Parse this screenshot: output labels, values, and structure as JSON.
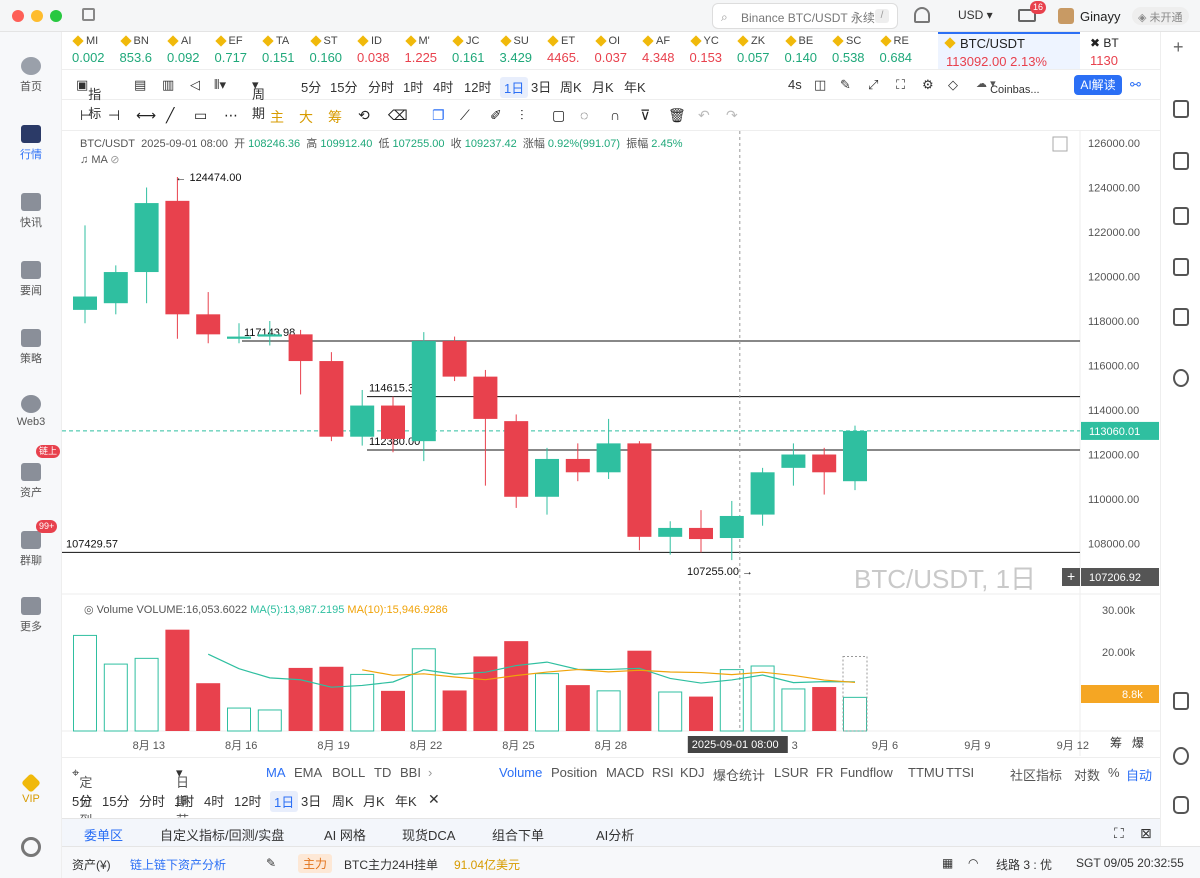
{
  "titlebar": {
    "search_placeholder": "Binance BTC/USDT 永续",
    "search_kbd": "/",
    "currency": "USD",
    "mail_badge": "16",
    "username": "Ginayy",
    "status_label": "未开通"
  },
  "sidebar": {
    "items": [
      {
        "label": "首页"
      },
      {
        "label": "行情"
      },
      {
        "label": "快讯"
      },
      {
        "label": "要闻"
      },
      {
        "label": "策略"
      },
      {
        "label": "Web3"
      },
      {
        "label": "资产"
      },
      {
        "label": "群聊"
      },
      {
        "label": "更多"
      },
      {
        "label": "VIP"
      }
    ],
    "asset_badge": "链上",
    "chat_badge": "99+"
  },
  "ticker": [
    {
      "name": "MI",
      "value": "0.002",
      "dir": "up"
    },
    {
      "name": "BN",
      "value": "853.6",
      "dir": "up"
    },
    {
      "name": "AI",
      "value": "0.092",
      "dir": "up"
    },
    {
      "name": "EF",
      "value": "0.717",
      "dir": "up"
    },
    {
      "name": "TA",
      "value": "0.151",
      "dir": "up"
    },
    {
      "name": "ST",
      "value": "0.160",
      "dir": "up"
    },
    {
      "name": "ID",
      "value": "0.038",
      "dir": "dn"
    },
    {
      "name": "M'",
      "value": "1.225",
      "dir": "dn"
    },
    {
      "name": "JC",
      "value": "0.161",
      "dir": "up"
    },
    {
      "name": "SU",
      "value": "3.429",
      "dir": "up"
    },
    {
      "name": "ET",
      "value": "4465.",
      "dir": "dn"
    },
    {
      "name": "OI",
      "value": "0.037",
      "dir": "dn"
    },
    {
      "name": "AF",
      "value": "4.348",
      "dir": "dn"
    },
    {
      "name": "YC",
      "value": "0.153",
      "dir": "dn"
    },
    {
      "name": "ZK",
      "value": "0.057",
      "dir": "up"
    },
    {
      "name": "BE",
      "value": "0.140",
      "dir": "up"
    },
    {
      "name": "SC",
      "value": "0.538",
      "dir": "up"
    },
    {
      "name": "RE",
      "value": "0.684",
      "dir": "up"
    }
  ],
  "active_ticker": {
    "name": "BTC/USDT",
    "price": "113092.00",
    "change": "2.13%"
  },
  "next_ticker": {
    "name": "BT",
    "price": "1130"
  },
  "toolbar": {
    "indicators": "指标",
    "period": "周期",
    "periods": [
      "5分",
      "15分",
      "分时",
      "1时",
      "4时",
      "12时",
      "1日",
      "3日",
      "周K",
      "月K",
      "年K"
    ],
    "active_period": "1日",
    "interval": "4s",
    "source": "Coinbas...",
    "ai_button": "AI解读"
  },
  "drawtools": {
    "main": "主",
    "big": "大",
    "chips": "筹"
  },
  "chart_info": {
    "symbol": "BTC/USDT",
    "date": "2025-09-01 08:00",
    "open_label": "开",
    "open": "108246.36",
    "high_label": "高",
    "high": "109912.40",
    "low_label": "低",
    "low": "107255.00",
    "close_label": "收",
    "close": "109237.42",
    "chg_label": "涨幅",
    "chg": "0.92%(991.07)",
    "amp_label": "振幅",
    "amp": "2.45%",
    "ma_label": "MA"
  },
  "watermark": "BTC/USDT, 1日",
  "volume_info": {
    "label": "Volume",
    "volume": "VOLUME:16,053.6022",
    "ma5": "MA(5):13,987.2195",
    "ma10": "MA(10):15,946.9286"
  },
  "chart_data": {
    "type": "candlestick",
    "ylim": [
      106000,
      127000
    ],
    "y_ticks": [
      "126000.00",
      "124000.00",
      "122000.00",
      "120000.00",
      "118000.00",
      "116000.00",
      "114000.00",
      "112000.00",
      "110000.00",
      "108000.00"
    ],
    "volume_ticks": [
      "30.00k",
      "20.00k"
    ],
    "volume_current_label": "8.8k",
    "x_ticks": [
      "8月 13",
      "8月 16",
      "8月 19",
      "8月 22",
      "8月 25",
      "8月 28",
      "9月 3",
      "9月 6",
      "9月 9",
      "9月 12"
    ],
    "crosshair_date": "2025-09-01 08:00",
    "candles": [
      {
        "o": 118500,
        "h": 122300,
        "l": 117900,
        "c": 119100,
        "v": 25000
      },
      {
        "o": 118800,
        "h": 120500,
        "l": 118300,
        "c": 120200,
        "v": 17500
      },
      {
        "o": 120200,
        "h": 124000,
        "l": 118800,
        "c": 123300,
        "v": 19000
      },
      {
        "o": 123400,
        "h": 124474,
        "l": 117200,
        "c": 118300,
        "v": 26500
      },
      {
        "o": 118300,
        "h": 119300,
        "l": 117000,
        "c": 117400,
        "v": 12500
      },
      {
        "o": 117200,
        "h": 117900,
        "l": 117000,
        "c": 117300,
        "v": 6000
      },
      {
        "o": 117300,
        "h": 118000,
        "l": 116900,
        "c": 117400,
        "v": 5500
      },
      {
        "o": 117400,
        "h": 117600,
        "l": 114700,
        "c": 116200,
        "v": 16500
      },
      {
        "o": 116200,
        "h": 116600,
        "l": 112600,
        "c": 112800,
        "v": 16800
      },
      {
        "o": 112800,
        "h": 114900,
        "l": 112400,
        "c": 114200,
        "v": 14800
      },
      {
        "o": 114200,
        "h": 114600,
        "l": 112100,
        "c": 112700,
        "v": 10500
      },
      {
        "o": 112600,
        "h": 117500,
        "l": 111700,
        "c": 117100,
        "v": 21500
      },
      {
        "o": 117100,
        "h": 117300,
        "l": 115300,
        "c": 115500,
        "v": 10600
      },
      {
        "o": 115500,
        "h": 115800,
        "l": 110600,
        "c": 113600,
        "v": 19500
      },
      {
        "o": 113500,
        "h": 113800,
        "l": 109600,
        "c": 110100,
        "v": 23500
      },
      {
        "o": 110100,
        "h": 112300,
        "l": 109300,
        "c": 111800,
        "v": 15000
      },
      {
        "o": 111800,
        "h": 112500,
        "l": 110800,
        "c": 111200,
        "v": 12000
      },
      {
        "o": 111200,
        "h": 113600,
        "l": 110900,
        "c": 112500,
        "v": 10500
      },
      {
        "o": 112500,
        "h": 112600,
        "l": 107700,
        "c": 108300,
        "v": 21000
      },
      {
        "o": 108300,
        "h": 109000,
        "l": 107500,
        "c": 108700,
        "v": 10200
      },
      {
        "o": 108700,
        "h": 109500,
        "l": 107600,
        "c": 108200,
        "v": 9000
      },
      {
        "o": 108246.36,
        "h": 109912.4,
        "l": 107255,
        "c": 109237.42,
        "v": 16053.6
      },
      {
        "o": 109300,
        "h": 111400,
        "l": 108800,
        "c": 111200,
        "v": 17000
      },
      {
        "o": 111400,
        "h": 112500,
        "l": 110600,
        "c": 112000,
        "v": 11000
      },
      {
        "o": 112000,
        "h": 112300,
        "l": 110200,
        "c": 111200,
        "v": 11500
      },
      {
        "o": 110800,
        "h": 113300,
        "l": 110400,
        "c": 113060,
        "v": 8800
      }
    ],
    "levels": [
      {
        "label": "117143.98",
        "price": 117100
      },
      {
        "label": "114615.38",
        "price": 114600
      },
      {
        "label": "112380.00",
        "price": 112200
      },
      {
        "label": "107429.57",
        "price": 107600
      }
    ],
    "high_label": "← 124474.00",
    "low_label": "107255.00 →",
    "price_tag": "113060.01",
    "cursor_tag": "107206.92"
  },
  "indicator_bar": {
    "locate": "定位到...",
    "range": "日期范围",
    "main_inds": [
      "MA",
      "EMA",
      "BOLL",
      "TD",
      "BBI"
    ],
    "sub_inds": [
      "Volume",
      "Position",
      "MACD",
      "RSI",
      "KDJ",
      "爆仓统计",
      "LSUR",
      "FR",
      "Fundflow",
      "TTMU",
      "TTSI"
    ],
    "community": "社区指标",
    "log": "对数",
    "pct": "%",
    "auto": "自动"
  },
  "period_bar": [
    "5分",
    "15分",
    "分时",
    "1时",
    "4时",
    "12时",
    "1日",
    "3日",
    "周K",
    "月K",
    "年K"
  ],
  "bottom_tabs": [
    "委单区",
    "自定义指标/回测/实盘",
    "AI 网格",
    "现货DCA",
    "组合下单",
    "AI分析"
  ],
  "status": {
    "assets": "资产(¥)",
    "analysis": "链上链下资产分析",
    "main_tag": "主力",
    "main_text": "BTC主力24H挂单",
    "main_value": "91.04亿美元",
    "line": "线路 3 : 优",
    "time": "SGT 09/05 20:32:55"
  }
}
